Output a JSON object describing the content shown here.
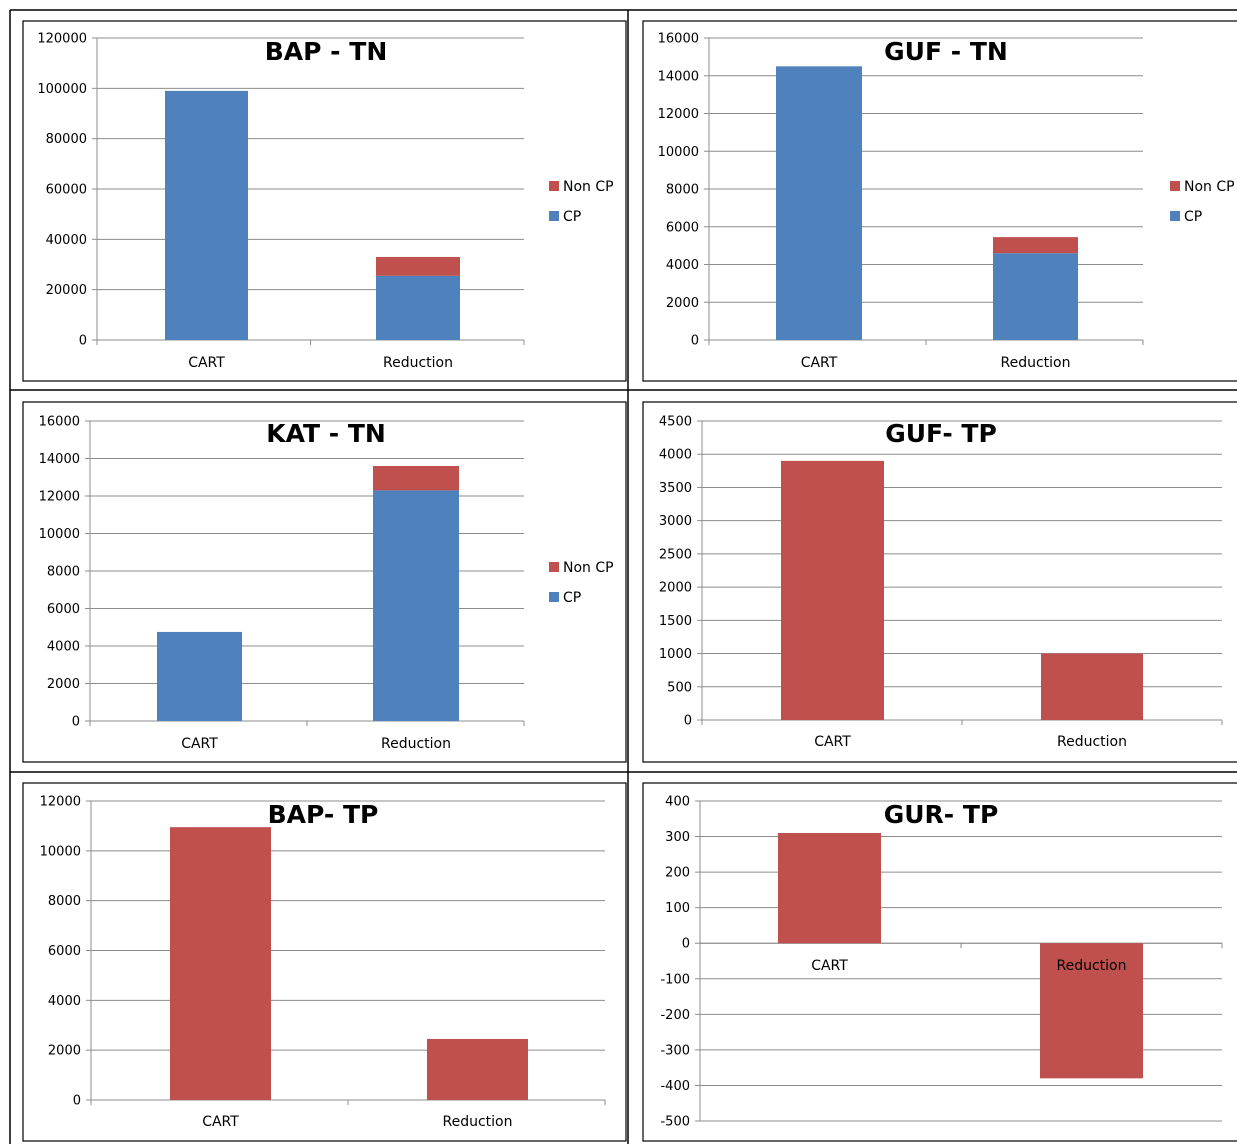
{
  "colors": {
    "cp": "#4f81bd",
    "noncp": "#c0504d",
    "grid": "#8c8c8c",
    "axis": "#8c8c8c",
    "border": "#000000"
  },
  "chart_data": [
    {
      "type": "bar",
      "stacked": true,
      "title": "BAP - TN",
      "categories": [
        "CART",
        "Reduction"
      ],
      "series": [
        {
          "name": "CP",
          "color": "#4f81bd",
          "values": [
            99000,
            25500
          ]
        },
        {
          "name": "Non CP",
          "color": "#c0504d",
          "values": [
            0,
            7500
          ]
        }
      ],
      "ylim": [
        0,
        120000
      ],
      "yticks": [
        "0",
        "20000",
        "40000",
        "60000",
        "80000",
        "100000",
        "120000"
      ],
      "grid": true,
      "legend": "right"
    },
    {
      "type": "bar",
      "stacked": true,
      "title": "GUF - TN",
      "categories": [
        "CART",
        "Reduction"
      ],
      "series": [
        {
          "name": "CP",
          "color": "#4f81bd",
          "values": [
            14500,
            4600
          ]
        },
        {
          "name": "Non CP",
          "color": "#c0504d",
          "values": [
            0,
            850
          ]
        }
      ],
      "ylim": [
        0,
        16000
      ],
      "yticks": [
        "0",
        "2000",
        "4000",
        "6000",
        "8000",
        "10000",
        "12000",
        "14000",
        "16000"
      ],
      "grid": true,
      "legend": "right"
    },
    {
      "type": "bar",
      "stacked": true,
      "title": "KAT - TN",
      "categories": [
        "CART",
        "Reduction"
      ],
      "series": [
        {
          "name": "CP",
          "color": "#4f81bd",
          "values": [
            4750,
            12300
          ]
        },
        {
          "name": "Non CP",
          "color": "#c0504d",
          "values": [
            0,
            1300
          ]
        }
      ],
      "ylim": [
        0,
        16000
      ],
      "yticks": [
        "0",
        "2000",
        "4000",
        "6000",
        "8000",
        "10000",
        "12000",
        "14000",
        "16000"
      ],
      "grid": true,
      "legend": "right"
    },
    {
      "type": "bar",
      "title": "GUF- TP",
      "categories": [
        "CART",
        "Reduction"
      ],
      "series": [
        {
          "name": "",
          "color": "#c0504d",
          "values": [
            3900,
            1000
          ]
        }
      ],
      "ylim": [
        0,
        4500
      ],
      "yticks": [
        "0",
        "500",
        "1000",
        "1500",
        "2000",
        "2500",
        "3000",
        "3500",
        "4000",
        "4500"
      ],
      "grid": true,
      "legend": "none"
    },
    {
      "type": "bar",
      "title": "BAP- TP",
      "categories": [
        "CART",
        "Reduction"
      ],
      "series": [
        {
          "name": "",
          "color": "#c0504d",
          "values": [
            10950,
            2450
          ]
        }
      ],
      "ylim": [
        0,
        12000
      ],
      "yticks": [
        "0",
        "2000",
        "4000",
        "6000",
        "8000",
        "10000",
        "12000"
      ],
      "grid": true,
      "legend": "none"
    },
    {
      "type": "bar",
      "title": "GUR- TP",
      "categories": [
        "CART",
        "Reduction"
      ],
      "series": [
        {
          "name": "",
          "color": "#c0504d",
          "values": [
            310,
            -380
          ]
        }
      ],
      "ylim": [
        -500,
        400
      ],
      "yticks": [
        "-500",
        "-400",
        "-300",
        "-200",
        "-100",
        "0",
        "100",
        "200",
        "300",
        "400"
      ],
      "grid": true,
      "legend": "none"
    }
  ]
}
